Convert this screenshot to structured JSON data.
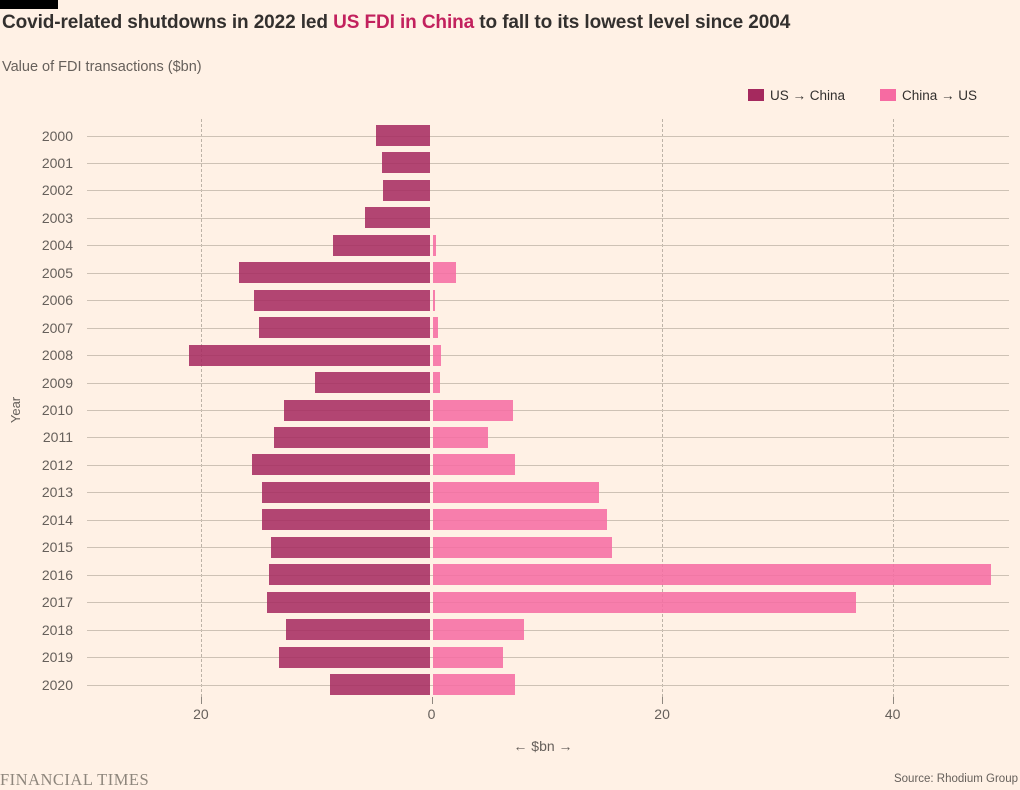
{
  "header": {
    "title": {
      "pre": "Covid-related shutdowns in 2022 led ",
      "highlight": "US FDI in China",
      "post": " to fall to its lowest level since 2004"
    },
    "subtitle": "Value of FDI transactions ($bn)"
  },
  "legend": [
    {
      "label": "US → China",
      "color": "#a5295e"
    },
    {
      "label": "China → US",
      "color": "#f66ba2"
    }
  ],
  "chart_data": {
    "type": "bar",
    "orientation": "diverging-horizontal",
    "title": "Value of FDI transactions ($bn)",
    "xlabel": "← $bn →",
    "ylabel": "Year",
    "xlim": [
      -30,
      50
    ],
    "grid": "dashed-vertical",
    "legend_position": "top-right",
    "x_ticks": [
      {
        "value": -20,
        "label": "20"
      },
      {
        "value": 0,
        "label": "0"
      },
      {
        "value": 20,
        "label": "20"
      },
      {
        "value": 40,
        "label": "40"
      }
    ],
    "x_gridlines": [
      -20,
      20,
      40
    ],
    "categories": [
      "2000",
      "2001",
      "2002",
      "2003",
      "2004",
      "2005",
      "2006",
      "2007",
      "2008",
      "2009",
      "2010",
      "2011",
      "2012",
      "2013",
      "2014",
      "2015",
      "2016",
      "2017",
      "2018",
      "2019",
      "2020"
    ],
    "series": [
      {
        "name": "US → China",
        "direction": "left",
        "color": "#a5295e",
        "values": [
          4.7,
          4.2,
          4.1,
          5.6,
          8.4,
          16.6,
          15.3,
          14.8,
          20.9,
          10.0,
          12.7,
          13.5,
          15.4,
          14.6,
          14.6,
          13.8,
          14.0,
          14.1,
          12.5,
          13.1,
          8.7
        ]
      },
      {
        "name": "China → US",
        "direction": "right",
        "color": "#f66ba2",
        "values": [
          0,
          0,
          0,
          0,
          0.3,
          2.0,
          0.2,
          0.4,
          0.7,
          0.6,
          6.9,
          4.8,
          7.1,
          14.4,
          15.1,
          15.5,
          48.4,
          36.7,
          7.9,
          6.1,
          7.1
        ]
      }
    ]
  },
  "footer": {
    "brand": "FINANCIAL TIMES",
    "source": "Source: Rhodium Group"
  },
  "colors": {
    "background": "#fff1e5",
    "title_text": "#33302e",
    "title_highlight": "#c2215d",
    "muted_text": "#66605b",
    "row_line": "#cec2b5"
  }
}
